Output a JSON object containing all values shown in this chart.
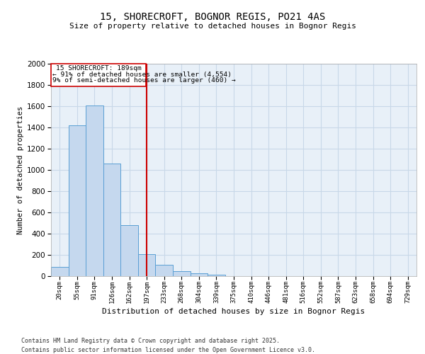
{
  "title1": "15, SHORECROFT, BOGNOR REGIS, PO21 4AS",
  "title2": "Size of property relative to detached houses in Bognor Regis",
  "xlabel": "Distribution of detached houses by size in Bognor Regis",
  "ylabel": "Number of detached properties",
  "categories": [
    "20sqm",
    "55sqm",
    "91sqm",
    "126sqm",
    "162sqm",
    "197sqm",
    "233sqm",
    "268sqm",
    "304sqm",
    "339sqm",
    "375sqm",
    "410sqm",
    "446sqm",
    "481sqm",
    "516sqm",
    "552sqm",
    "587sqm",
    "623sqm",
    "658sqm",
    "694sqm",
    "729sqm"
  ],
  "values": [
    85,
    1420,
    1610,
    1060,
    480,
    205,
    110,
    45,
    30,
    15,
    0,
    0,
    0,
    0,
    0,
    0,
    0,
    0,
    0,
    0,
    0
  ],
  "bar_color": "#c5d8ee",
  "bar_edge_color": "#5a9fd4",
  "red_line_index": 5,
  "red_line_color": "#cc0000",
  "ylim": [
    0,
    2000
  ],
  "yticks": [
    0,
    200,
    400,
    600,
    800,
    1000,
    1200,
    1400,
    1600,
    1800,
    2000
  ],
  "annotation_text_line1": "15 SHORECROFT: 189sqm",
  "annotation_text_line2": "← 91% of detached houses are smaller (4,554)",
  "annotation_text_line3": "9% of semi-detached houses are larger (460) →",
  "annotation_box_color": "#cc0000",
  "grid_color": "#c8d8e8",
  "background_color": "#e8f0f8",
  "footer1": "Contains HM Land Registry data © Crown copyright and database right 2025.",
  "footer2": "Contains public sector information licensed under the Open Government Licence v3.0."
}
